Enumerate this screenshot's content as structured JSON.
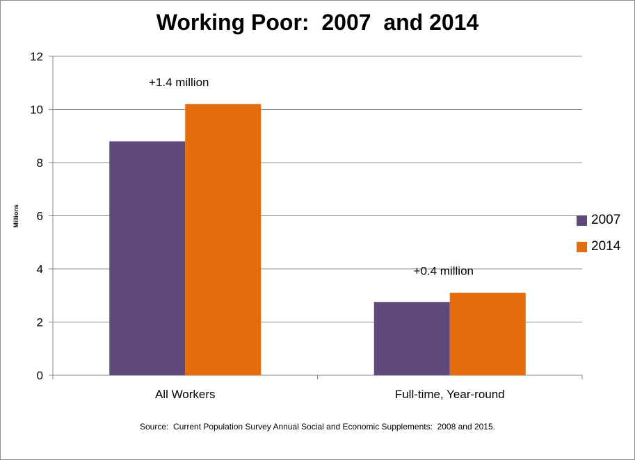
{
  "chart_data": {
    "type": "bar",
    "title": "Working Poor:  2007  and 2014",
    "ylabel": "Millions",
    "xlabel": "",
    "ylim": [
      0,
      12
    ],
    "yticks": [
      0,
      2,
      4,
      6,
      8,
      10,
      12
    ],
    "grid": true,
    "legend_position": "right",
    "categories": [
      "All Workers",
      "Full-time, Year-round"
    ],
    "series": [
      {
        "name": "2007",
        "values": [
          8.8,
          2.75
        ],
        "color": "#604a7b"
      },
      {
        "name": "2014",
        "values": [
          10.2,
          3.1
        ],
        "color": "#e46c0a"
      }
    ],
    "annotations": [
      "+1.4 million",
      "+0.4 million"
    ],
    "source": "Source:  Current Population Survey Annual Social and Economic Supplements:  2008 and 2015."
  }
}
